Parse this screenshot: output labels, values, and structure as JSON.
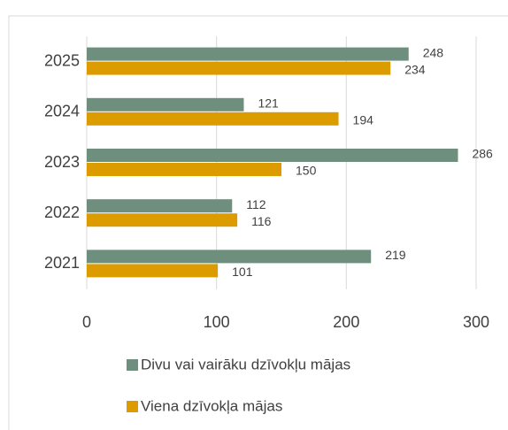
{
  "chart_data": {
    "type": "bar",
    "orientation": "horizontal",
    "categories": [
      "2021",
      "2022",
      "2023",
      "2024",
      "2025"
    ],
    "series": [
      {
        "name": "Divu vai vairāku dzīvokļu mājas",
        "color": "#6e8f7e",
        "values": [
          219,
          112,
          286,
          121,
          248
        ]
      },
      {
        "name": "Viena dzīvokļa mājas",
        "color": "#dc9c00",
        "values": [
          101,
          116,
          150,
          194,
          234
        ]
      }
    ],
    "xlim": [
      0,
      300
    ],
    "xticks": [
      0,
      100,
      200,
      300
    ],
    "grid": true,
    "legend": "bottom"
  }
}
